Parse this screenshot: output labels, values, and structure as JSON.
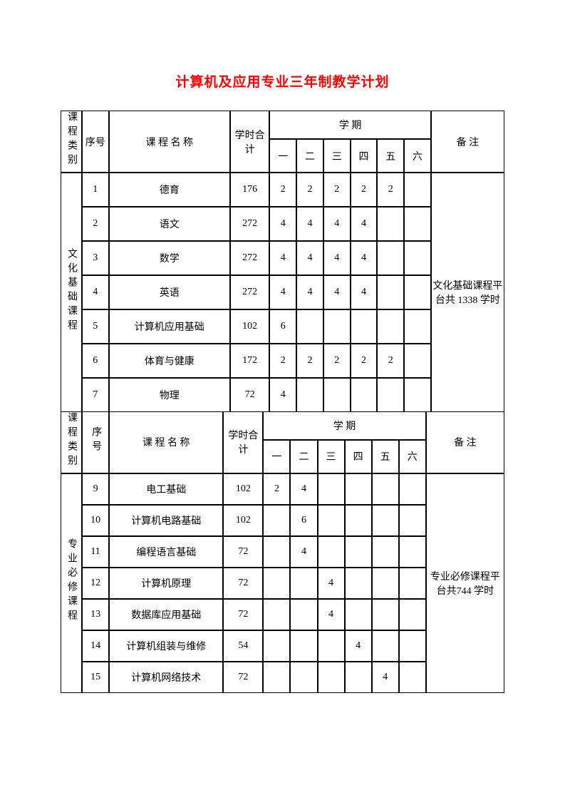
{
  "title": "计算机及应用专业三年制教学计划",
  "headers": {
    "category": "课程类别",
    "seq": "序号",
    "seq2": "序号",
    "name": "课 程 名 称",
    "name2": "课 程 名 称",
    "hours": "学时合计",
    "semester": "学 期",
    "sem_cols": [
      "一",
      "二",
      "三",
      "四",
      "五",
      "六"
    ],
    "note": "备 注"
  },
  "section1": {
    "category": "文化基础课程",
    "note": "文化基础课程平台共 1338 学时",
    "rows": [
      {
        "seq": "1",
        "name": "德育",
        "hours": "176",
        "sems": [
          "2",
          "2",
          "2",
          "2",
          "2",
          ""
        ]
      },
      {
        "seq": "2",
        "name": "语文",
        "hours": "272",
        "sems": [
          "4",
          "4",
          "4",
          "4",
          "",
          ""
        ]
      },
      {
        "seq": "3",
        "name": "数学",
        "hours": "272",
        "sems": [
          "4",
          "4",
          "4",
          "4",
          "",
          ""
        ]
      },
      {
        "seq": "4",
        "name": "英语",
        "hours": "272",
        "sems": [
          "4",
          "4",
          "4",
          "4",
          "",
          ""
        ]
      },
      {
        "seq": "5",
        "name": "计算机应用基础",
        "hours": "102",
        "sems": [
          "6",
          "",
          "",
          "",
          "",
          ""
        ]
      },
      {
        "seq": "6",
        "name": "体育与健康",
        "hours": "172",
        "sems": [
          "2",
          "2",
          "2",
          "2",
          "2",
          ""
        ]
      },
      {
        "seq": "7",
        "name": "物理",
        "hours": "72",
        "sems": [
          "4",
          "",
          "",
          "",
          "",
          ""
        ]
      }
    ]
  },
  "section2": {
    "category": "专业必修课程",
    "note": "专业必修课程平台共744 学时",
    "rows": [
      {
        "seq": "9",
        "name": "电工基础",
        "hours": "102",
        "sems": [
          "2",
          "4",
          "",
          "",
          "",
          ""
        ]
      },
      {
        "seq": "10",
        "name": "计算机电路基础",
        "hours": "102",
        "sems": [
          "",
          "6",
          "",
          "",
          "",
          ""
        ]
      },
      {
        "seq": "11",
        "name": "编程语言基础",
        "hours": "72",
        "sems": [
          "",
          "4",
          "",
          "",
          "",
          ""
        ]
      },
      {
        "seq": "12",
        "name": "计算机原理",
        "hours": "72",
        "sems": [
          "",
          "",
          "4",
          "",
          "",
          ""
        ]
      },
      {
        "seq": "13",
        "name": "数据库应用基础",
        "hours": "72",
        "sems": [
          "",
          "",
          "4",
          "",
          "",
          ""
        ]
      },
      {
        "seq": "14",
        "name": "计算机组装与维修",
        "hours": "54",
        "sems": [
          "",
          "",
          "",
          "4",
          "",
          ""
        ]
      },
      {
        "seq": "15",
        "name": "计算机网络技术",
        "hours": "72",
        "sems": [
          "",
          "",
          "",
          "",
          "4",
          ""
        ]
      }
    ]
  },
  "style": {
    "title_color": "#ff0000",
    "border_color": "#000000",
    "background": "#ffffff",
    "font_family": "SimSun",
    "title_fontsize": 19,
    "body_fontsize": 14
  }
}
